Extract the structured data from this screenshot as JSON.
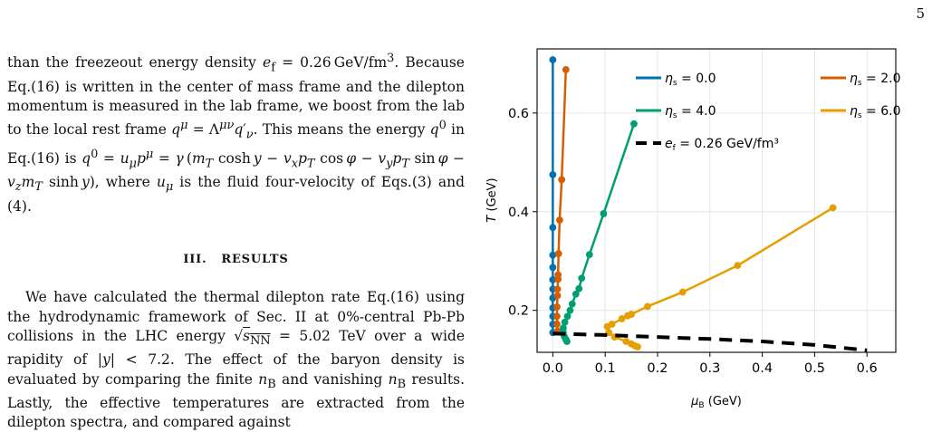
{
  "page": {
    "number": "5"
  },
  "body_text": {
    "para1": "than the freezeout energy density e_f = 0.26 GeV/fm³. Because Eq.(16) is written in the center of mass frame and the dilepton momentum is measured in the lab frame, we boost from the lab to the local rest frame q^μ = Λ^{μν} q′_ν. This means the energy q⁰ in Eq.(16) is q⁰ = u_μ p^μ = γ (m_T cosh y − v_x p_T cos φ − v_y p_T sin φ − v_z m_T sinh y), where u_μ is the fluid four-velocity of Eqs.(3) and (4).",
    "section_heading": "III. RESULTS",
    "para2": "We have calculated the thermal dilepton rate Eq.(16) using the hydrodynamic framework of Sec. II at 0%-central Pb-Pb collisions in the LHC energy √s_NN = 5.02 TeV over a wide rapidity of |y| < 7.2. The effect of the baryon density is evaluated by comparing the finite n_B and vanishing n_B results. Lastly, the effective temperatures are extracted from the dilepton spectra, and compared against"
  },
  "chart_data": {
    "type": "line",
    "xlabel": "μ_B (GeV)",
    "ylabel": "T (GeV)",
    "xlim": [
      -0.03,
      0.655
    ],
    "ylim": [
      0.115,
      0.73
    ],
    "xticks": [
      0.0,
      0.1,
      0.2,
      0.3,
      0.4,
      0.5,
      0.6
    ],
    "xtick_labels": [
      "0.0",
      "0.1",
      "0.2",
      "0.3",
      "0.4",
      "0.5",
      "0.6"
    ],
    "yticks": [
      0.2,
      0.4,
      0.6
    ],
    "ytick_labels": [
      "0.2",
      "0.4",
      "0.6"
    ],
    "grid": true,
    "legend_position": "top",
    "series": [
      {
        "name": "η_s = 0.0",
        "color": "#0072b2",
        "x": [
          0.0,
          0.0,
          0.0,
          0.0,
          0.0,
          0.0,
          0.0,
          0.0,
          0.0,
          0.0,
          0.0,
          0.0
        ],
        "y": [
          0.708,
          0.475,
          0.368,
          0.312,
          0.287,
          0.262,
          0.243,
          0.225,
          0.205,
          0.188,
          0.172,
          0.155
        ]
      },
      {
        "name": "η_s = 2.0",
        "color": "#d55e00",
        "x": [
          0.025,
          0.017,
          0.013,
          0.011,
          0.01,
          0.01,
          0.009,
          0.009,
          0.008,
          0.008,
          0.008,
          0.009
        ],
        "y": [
          0.688,
          0.465,
          0.383,
          0.315,
          0.272,
          0.263,
          0.243,
          0.23,
          0.207,
          0.188,
          0.172,
          0.158
        ]
      },
      {
        "name": "η_s = 4.0",
        "color": "#009e73",
        "x": [
          0.155,
          0.097,
          0.07,
          0.055,
          0.05,
          0.044,
          0.037,
          0.033,
          0.028,
          0.023,
          0.02,
          0.02,
          0.022,
          0.025,
          0.027
        ],
        "y": [
          0.578,
          0.396,
          0.313,
          0.265,
          0.244,
          0.233,
          0.213,
          0.2,
          0.188,
          0.176,
          0.164,
          0.155,
          0.147,
          0.141,
          0.137
        ]
      },
      {
        "name": "η_s = 6.0",
        "color": "#e69f00",
        "x": [
          0.535,
          0.353,
          0.248,
          0.181,
          0.15,
          0.143,
          0.132,
          0.113,
          0.104,
          0.107,
          0.118,
          0.14,
          0.15,
          0.157,
          0.162
        ],
        "y": [
          0.408,
          0.291,
          0.237,
          0.208,
          0.192,
          0.189,
          0.183,
          0.172,
          0.167,
          0.155,
          0.146,
          0.137,
          0.132,
          0.128,
          0.126
        ]
      },
      {
        "name": "e_f = 0.26 GeV/fm³",
        "color": "#000000",
        "dashed": true,
        "x": [
          0.0,
          0.1,
          0.2,
          0.3,
          0.4,
          0.5,
          0.6
        ],
        "y": [
          0.153,
          0.15,
          0.146,
          0.142,
          0.137,
          0.13,
          0.119
        ]
      }
    ]
  }
}
